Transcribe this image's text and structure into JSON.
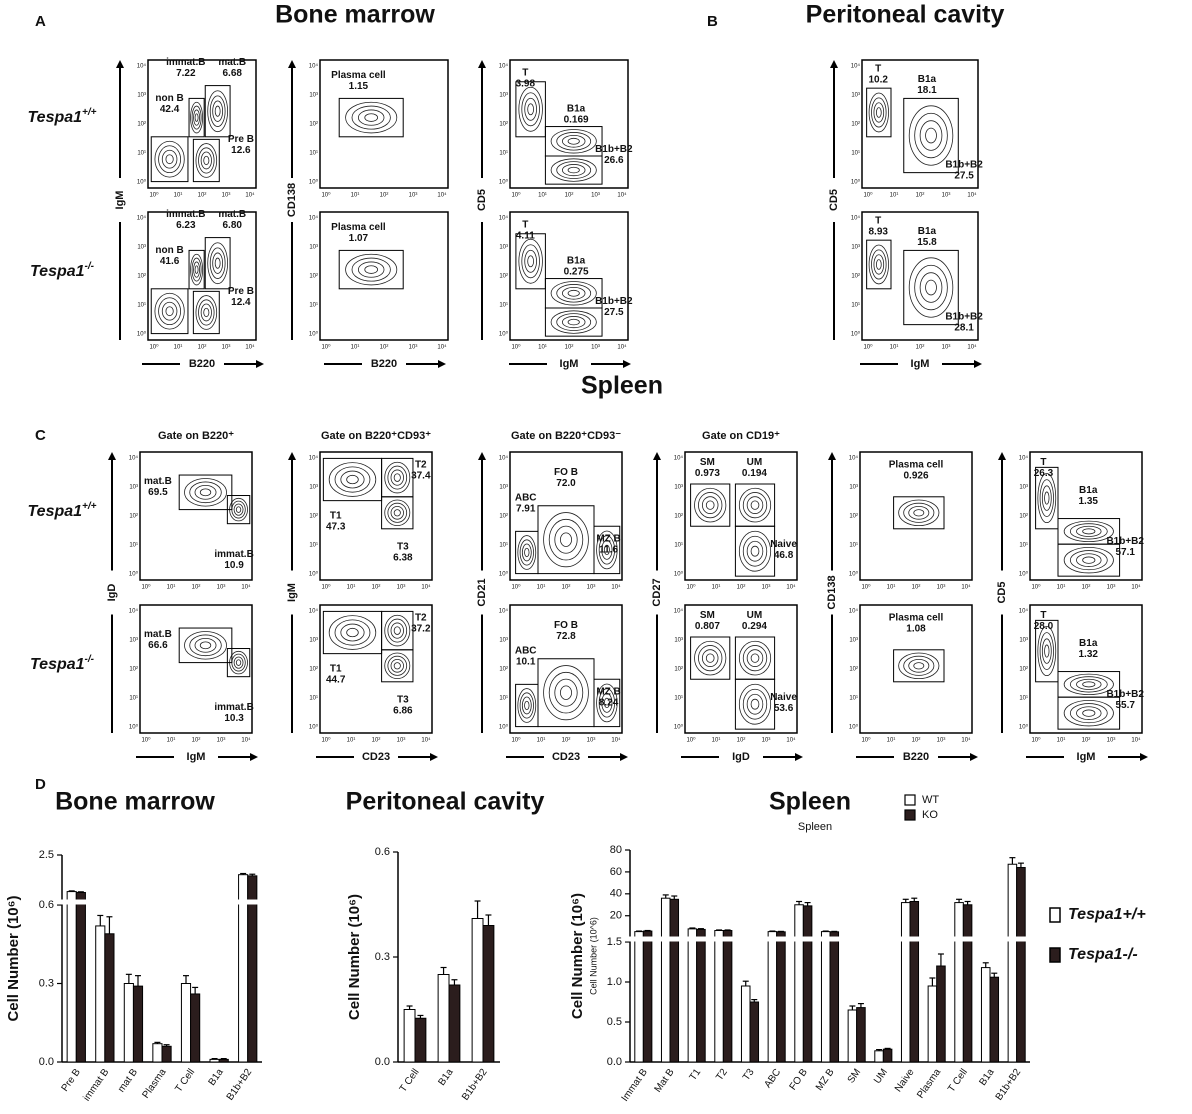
{
  "panel_labels": [
    "A",
    "B",
    "C",
    "D"
  ],
  "section_titles": {
    "bone_marrow": "Bone marrow",
    "peritoneal": "Peritoneal cavity",
    "spleen": "Spleen"
  },
  "genotypes": [
    {
      "base": "Tespa1",
      "sup": "+/+"
    },
    {
      "base": "Tespa1",
      "sup": "-/-"
    }
  ],
  "log_ticks": [
    "10⁰",
    "10¹",
    "10²",
    "10³",
    "10⁴"
  ],
  "plots": [
    {
      "x_label": "B220",
      "y_label": "IgM",
      "rows": [
        [
          {
            "name": "non B",
            "value": "42.4"
          },
          {
            "name": "immat.B",
            "value": "7.22"
          },
          {
            "name": "mat.B",
            "value": "6.68"
          },
          {
            "name": "Pre B",
            "value": "12.6"
          }
        ],
        [
          {
            "name": "non B",
            "value": "41.6"
          },
          {
            "name": "immat.B",
            "value": "6.23"
          },
          {
            "name": "mat.B",
            "value": "6.80"
          },
          {
            "name": "Pre B",
            "value": "12.4"
          }
        ]
      ]
    },
    {
      "x_label": "B220",
      "y_label": "CD138",
      "rows": [
        [
          {
            "name": "Plasma cell",
            "value": "1.15"
          }
        ],
        [
          {
            "name": "Plasma cell",
            "value": "1.07"
          }
        ]
      ]
    },
    {
      "x_label": "IgM",
      "y_label": "CD5",
      "rows": [
        [
          {
            "name": "T",
            "value": "3.98"
          },
          {
            "name": "B1a",
            "value": "0.169"
          },
          {
            "name": "B1b+B2",
            "value": "26.6"
          }
        ],
        [
          {
            "name": "T",
            "value": "4.11"
          },
          {
            "name": "B1a",
            "value": "0.275"
          },
          {
            "name": "B1b+B2",
            "value": "27.5"
          }
        ]
      ]
    },
    {
      "x_label": "IgM",
      "y_label": "CD5",
      "rows": [
        [
          {
            "name": "T",
            "value": "10.2"
          },
          {
            "name": "B1a",
            "value": "18.1"
          },
          {
            "name": "B1b+B2",
            "value": "27.5"
          }
        ],
        [
          {
            "name": "T",
            "value": "8.93"
          },
          {
            "name": "B1a",
            "value": "15.8"
          },
          {
            "name": "B1b+B2",
            "value": "28.1"
          }
        ]
      ]
    },
    {
      "title": "Gate on B220⁺",
      "x_label": "IgM",
      "y_label": "IgD",
      "rows": [
        [
          {
            "name": "mat.B",
            "value": "69.5"
          },
          {
            "name": "immat.B",
            "value": "10.9"
          }
        ],
        [
          {
            "name": "mat.B",
            "value": "66.6"
          },
          {
            "name": "immat.B",
            "value": "10.3"
          }
        ]
      ]
    },
    {
      "title": "Gate on B220⁺CD93⁺",
      "x_label": "CD23",
      "y_label": "IgM",
      "rows": [
        [
          {
            "name": "T2",
            "value": "37.4"
          },
          {
            "name": "T1",
            "value": "47.3"
          },
          {
            "name": "T3",
            "value": "6.38"
          }
        ],
        [
          {
            "name": "T2",
            "value": "37.2"
          },
          {
            "name": "T1",
            "value": "44.7"
          },
          {
            "name": "T3",
            "value": "6.86"
          }
        ]
      ]
    },
    {
      "title": "Gate on B220⁺CD93⁻",
      "x_label": "CD23",
      "y_label": "CD21",
      "rows": [
        [
          {
            "name": "ABC",
            "value": "7.91"
          },
          {
            "name": "FO B",
            "value": "72.0"
          },
          {
            "name": "MZ B",
            "value": "11.6"
          }
        ],
        [
          {
            "name": "ABC",
            "value": "10.1"
          },
          {
            "name": "FO B",
            "value": "72.8"
          },
          {
            "name": "MZ B",
            "value": "8.24"
          }
        ]
      ]
    },
    {
      "title": "Gate on CD19⁺",
      "x_label": "IgD",
      "y_label": "CD27",
      "rows": [
        [
          {
            "name": "SM",
            "value": "0.973"
          },
          {
            "name": "UM",
            "value": "0.194"
          },
          {
            "name": "Naive",
            "value": "46.8"
          }
        ],
        [
          {
            "name": "SM",
            "value": "0.807"
          },
          {
            "name": "UM",
            "value": "0.294"
          },
          {
            "name": "Naive",
            "value": "53.6"
          }
        ]
      ]
    },
    {
      "x_label": "B220",
      "y_label": "CD138",
      "rows": [
        [
          {
            "name": "Plasma cell",
            "value": "0.926"
          }
        ],
        [
          {
            "name": "Plasma cell",
            "value": "1.08"
          }
        ]
      ]
    },
    {
      "x_label": "IgM",
      "y_label": "CD5",
      "rows": [
        [
          {
            "name": "T",
            "value": "26.3"
          },
          {
            "name": "B1a",
            "value": "1.35"
          },
          {
            "name": "B1b+B2",
            "value": "57.1"
          }
        ],
        [
          {
            "name": "T",
            "value": "28.0"
          },
          {
            "name": "B1a",
            "value": "1.32"
          },
          {
            "name": "B1b+B2",
            "value": "55.7"
          }
        ]
      ]
    }
  ],
  "genotype_legend": [
    "Tespa1+/+",
    "Tespa1-/-"
  ],
  "chart_data": [
    {
      "type": "bar",
      "title": "Bone marrow",
      "y_label": "Cell Number (10⁶)",
      "categories": [
        "Pre B",
        "immat B",
        "mat B",
        "Plasma",
        "T Cell",
        "B1a",
        "B1b+B2"
      ],
      "series": [
        {
          "color": "#ffffff",
          "values": [
            0.92,
            0.52,
            0.3,
            0.07,
            0.3,
            0.01,
            1.65
          ],
          "errors": [
            0.03,
            0.04,
            0.035,
            0.005,
            0.03,
            0.003,
            0.05
          ]
        },
        {
          "color": "#2b1d1d",
          "values": [
            0.88,
            0.49,
            0.29,
            0.06,
            0.26,
            0.01,
            1.6
          ],
          "errors": [
            0.03,
            0.065,
            0.04,
            0.006,
            0.025,
            0.003,
            0.07
          ]
        }
      ],
      "ylim": [
        0,
        2.5
      ],
      "ybreak": 0.6,
      "yticks": [
        {
          "value": 0,
          "label": "0.0"
        },
        0.3,
        0.6,
        2.5
      ]
    },
    {
      "type": "bar",
      "title": "Peritoneal cavity",
      "y_label": "Cell Number (10⁶)",
      "categories": [
        "T Cell",
        "B1a",
        "B1b+B2"
      ],
      "series": [
        {
          "color": "#ffffff",
          "values": [
            0.15,
            0.25,
            0.41
          ],
          "errors": [
            0.01,
            0.02,
            0.05
          ]
        },
        {
          "color": "#2b1d1d",
          "values": [
            0.125,
            0.22,
            0.39
          ],
          "errors": [
            0.008,
            0.015,
            0.03
          ]
        }
      ],
      "ylim": [
        0,
        0.6
      ],
      "yticks": [
        {
          "value": 0,
          "label": "0.0"
        },
        0.3,
        0.6
      ]
    },
    {
      "type": "bar",
      "title": "Spleen",
      "subtitle": "Spleen",
      "y_label": "Cell Number (10⁶)",
      "y_label_small": "Cell Number (10^6)",
      "categories": [
        "Immat B",
        "Mat B",
        "T1",
        "T2",
        "T3",
        "ABC",
        "FO B",
        "MZ B",
        "SM",
        "UM",
        "Naive",
        "Plasma",
        "T Cell",
        "B1a",
        "B1b+B2"
      ],
      "series": [
        {
          "name": "WT",
          "color": "#ffffff",
          "values": [
            5.5,
            36,
            8,
            6.5,
            0.95,
            5.5,
            30,
            5.5,
            0.65,
            0.14,
            32,
            0.95,
            32,
            1.18,
            67
          ],
          "errors": [
            0.5,
            3,
            0.8,
            0.5,
            0.06,
            0.5,
            3,
            0.5,
            0.05,
            0.015,
            3,
            0.1,
            3,
            0.06,
            6
          ]
        },
        {
          "name": "KO",
          "color": "#2b1d1d",
          "values": [
            6,
            35,
            7.5,
            6.5,
            0.75,
            5.3,
            29,
            5.3,
            0.68,
            0.16,
            33,
            1.2,
            30,
            1.06,
            64
          ],
          "errors": [
            0.5,
            3,
            0.7,
            0.5,
            0.03,
            0.4,
            3,
            0.4,
            0.05,
            0.01,
            3,
            0.15,
            3,
            0.05,
            4
          ]
        }
      ],
      "ylim": [
        0,
        80
      ],
      "ybreak": 1.5,
      "yticks": [
        {
          "value": 0,
          "label": "0.0"
        },
        0.5,
        {
          "value": 1,
          "label": "1.0"
        },
        1.5,
        20,
        40,
        60,
        80
      ]
    }
  ]
}
